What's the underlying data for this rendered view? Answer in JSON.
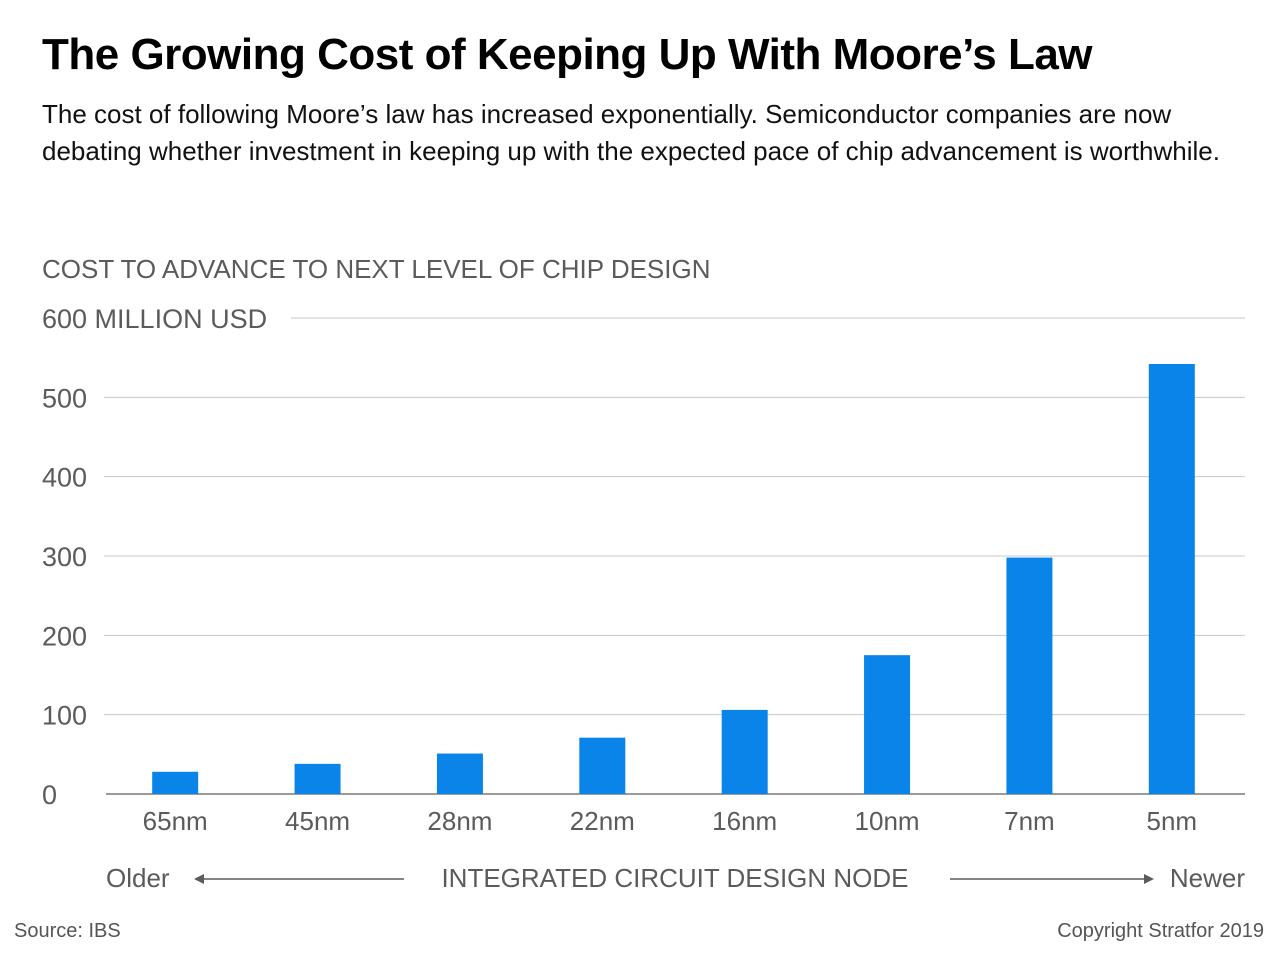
{
  "header": {
    "title": "The Growing Cost of Keeping Up With Moore’s Law",
    "subtitle": "The cost of following Moore’s law has increased exponentially. Semiconductor companies are now debating whether investment in keeping up with the expected pace of chip advancement is worthwhile."
  },
  "footer": {
    "source": "Source: IBS",
    "copyright": "Copyright Stratfor 2019"
  },
  "colors": {
    "bar": "#0a84e8",
    "grid": "#c8c8c8",
    "axis_text": "#5b5b5b"
  },
  "chart_data": {
    "type": "bar",
    "ylabel": "COST TO ADVANCE TO NEXT LEVEL OF CHIP DESIGN",
    "xlabel": "INTEGRATED CIRCUIT DESIGN NODE",
    "x_left_label": "Older",
    "x_right_label": "Newer",
    "y_top_tick_label": "600 MILLION USD",
    "yticks": [
      0,
      100,
      200,
      300,
      400,
      500,
      600
    ],
    "ylim": [
      0,
      600
    ],
    "grid": true,
    "categories": [
      "65nm",
      "45nm",
      "28nm",
      "22nm",
      "16nm",
      "10nm",
      "7nm",
      "5nm"
    ],
    "values": [
      28,
      38,
      51,
      71,
      106,
      175,
      298,
      542
    ]
  }
}
